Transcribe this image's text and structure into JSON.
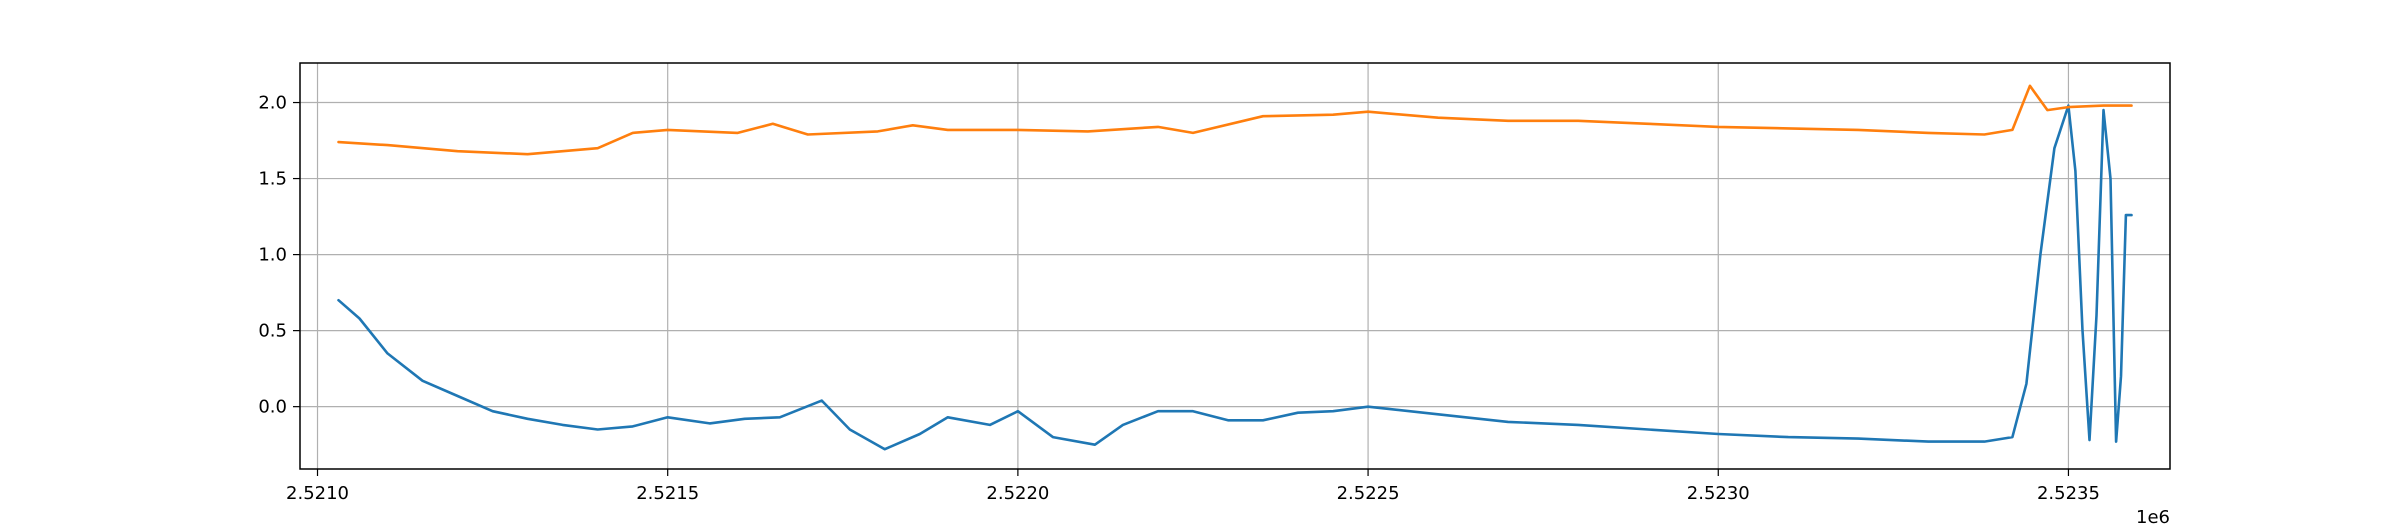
{
  "chart_data": {
    "type": "line",
    "title": "",
    "xlabel": "",
    "ylabel": "",
    "x_offset_label": "1e6",
    "xlim": [
      2520975,
      2523645
    ],
    "ylim": [
      -0.41,
      2.26
    ],
    "x_ticks": [
      2521000,
      2521500,
      2522000,
      2522500,
      2523000,
      2523500
    ],
    "x_tick_labels": [
      "2.5210",
      "2.5215",
      "2.5220",
      "2.5225",
      "2.5230",
      "2.5235"
    ],
    "y_ticks": [
      0.0,
      0.5,
      1.0,
      1.5,
      2.0
    ],
    "y_tick_labels": [
      "0.0",
      "0.5",
      "1.0",
      "1.5",
      "2.0"
    ],
    "grid": true,
    "legend": null,
    "series": [
      {
        "color": "#1f77b4",
        "x": [
          2521030,
          2521060,
          2521100,
          2521150,
          2521200,
          2521250,
          2521300,
          2521350,
          2521400,
          2521450,
          2521500,
          2521560,
          2521610,
          2521660,
          2521720,
          2521760,
          2521810,
          2521860,
          2521900,
          2521960,
          2522000,
          2522050,
          2522110,
          2522150,
          2522200,
          2522250,
          2522300,
          2522350,
          2522400,
          2522450,
          2522500,
          2522600,
          2522700,
          2522800,
          2522900,
          2523000,
          2523100,
          2523200,
          2523300,
          2523380,
          2523420,
          2523440,
          2523460,
          2523480,
          2523500,
          2523510,
          2523520,
          2523530,
          2523540,
          2523550,
          2523560,
          2523568,
          2523575,
          2523582,
          2523590
        ],
        "y": [
          0.7,
          0.58,
          0.35,
          0.17,
          0.07,
          -0.03,
          -0.08,
          -0.12,
          -0.15,
          -0.13,
          -0.07,
          -0.11,
          -0.08,
          -0.07,
          0.04,
          -0.15,
          -0.28,
          -0.18,
          -0.07,
          -0.12,
          -0.03,
          -0.2,
          -0.25,
          -0.12,
          -0.03,
          -0.03,
          -0.09,
          -0.09,
          -0.04,
          -0.03,
          0.0,
          -0.05,
          -0.1,
          -0.12,
          -0.15,
          -0.18,
          -0.2,
          -0.21,
          -0.23,
          -0.23,
          -0.2,
          0.15,
          1.0,
          1.7,
          1.98,
          1.55,
          0.5,
          -0.22,
          0.6,
          1.95,
          1.5,
          -0.23,
          0.2,
          1.26,
          1.26
        ]
      },
      {
        "color": "#ff7f0e",
        "x": [
          2521030,
          2521100,
          2521200,
          2521300,
          2521400,
          2521450,
          2521500,
          2521600,
          2521650,
          2521700,
          2521800,
          2521850,
          2521900,
          2522000,
          2522100,
          2522200,
          2522250,
          2522350,
          2522450,
          2522500,
          2522600,
          2522700,
          2522800,
          2522900,
          2523000,
          2523100,
          2523200,
          2523300,
          2523380,
          2523420,
          2523445,
          2523470,
          2523500,
          2523550,
          2523590
        ],
        "y": [
          1.74,
          1.72,
          1.68,
          1.66,
          1.7,
          1.8,
          1.82,
          1.8,
          1.86,
          1.79,
          1.81,
          1.85,
          1.82,
          1.82,
          1.81,
          1.84,
          1.8,
          1.91,
          1.92,
          1.94,
          1.9,
          1.88,
          1.88,
          1.86,
          1.84,
          1.83,
          1.82,
          1.8,
          1.79,
          1.82,
          2.11,
          1.95,
          1.97,
          1.98,
          1.98
        ]
      }
    ]
  }
}
